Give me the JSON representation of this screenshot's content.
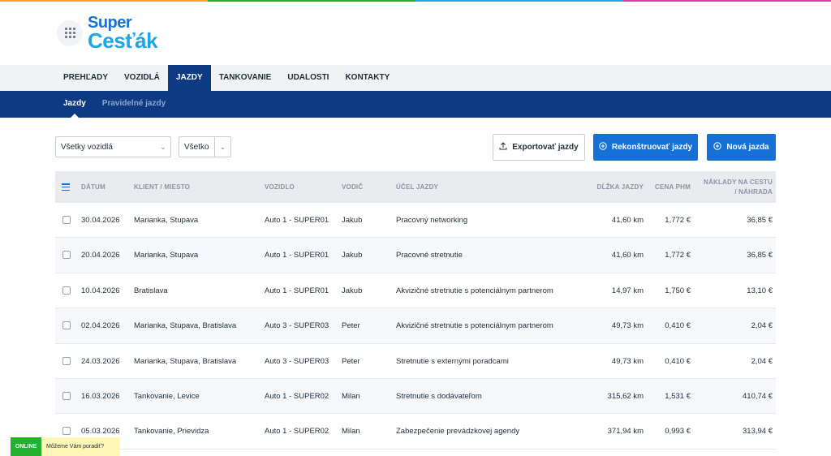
{
  "brand": {
    "line1": "Super",
    "line2": "Cesťák",
    "stripe_colors": [
      "#f5a623",
      "#25b02e",
      "#1ea7e6",
      "#d63cae"
    ]
  },
  "main_nav": [
    {
      "label": "PREHĽADY",
      "active": false
    },
    {
      "label": "VOZIDLÁ",
      "active": false
    },
    {
      "label": "JAZDY",
      "active": true
    },
    {
      "label": "TANKOVANIE",
      "active": false
    },
    {
      "label": "UDALOSTI",
      "active": false
    },
    {
      "label": "KONTAKTY",
      "active": false
    }
  ],
  "sub_nav": [
    {
      "label": "Jazdy",
      "active": true
    },
    {
      "label": "Pravidelné jazdy",
      "active": false
    }
  ],
  "filters": {
    "vehicle": "Všetky vozidlá",
    "scope": "Všetko"
  },
  "actions": {
    "export": "Exportovať jazdy",
    "reconstruct": "Rekonštruovať jazdy",
    "new": "Nová jazda"
  },
  "table": {
    "headers": {
      "date": "DÁTUM",
      "client": "KLIENT / MIESTO",
      "vehicle": "VOZIDLO",
      "driver": "VODIČ",
      "purpose": "ÚČEL JAZDY",
      "distance": "DĹŽKA JAZDY",
      "fuel_price": "CENA PHM",
      "costs_line1": "NÁKLADY NA CESTU",
      "costs_line2": "/ NÁHRADA"
    },
    "rows": [
      {
        "date": "30.04.2026",
        "client": "Marianka, Stupava",
        "vehicle": "Auto 1 - SUPER01",
        "driver": "Jakub",
        "purpose": "Pracovný networking",
        "distance": "41,60 km",
        "fuel_price": "1,772 €",
        "costs": "36,85 €"
      },
      {
        "date": "20.04.2026",
        "client": "Marianka, Stupava",
        "vehicle": "Auto 1 - SUPER01",
        "driver": "Jakub",
        "purpose": "Pracovné stretnutie",
        "distance": "41,60 km",
        "fuel_price": "1,772 €",
        "costs": "36,85 €"
      },
      {
        "date": "10.04.2026",
        "client": "Bratislava",
        "vehicle": "Auto 1 - SUPER01",
        "driver": "Jakub",
        "purpose": "Akvizičné stretnutie s potenciálnym partnerom",
        "distance": "14,97 km",
        "fuel_price": "1,750 €",
        "costs": "13,10 €"
      },
      {
        "date": "02.04.2026",
        "client": "Marianka, Stupava, Bratislava",
        "vehicle": "Auto 3 - SUPER03",
        "driver": "Peter",
        "purpose": "Akvizičné stretnutie s potenciálnym partnerom",
        "distance": "49,73 km",
        "fuel_price": "0,410 €",
        "costs": "2,04 €"
      },
      {
        "date": "24.03.2026",
        "client": "Marianka, Stupava, Bratislava",
        "vehicle": "Auto 3 - SUPER03",
        "driver": "Peter",
        "purpose": "Stretnutie s externými poradcami",
        "distance": "49,73 km",
        "fuel_price": "0,410 €",
        "costs": "2,04 €"
      },
      {
        "date": "16.03.2026",
        "client": "Tankovanie, Levice",
        "vehicle": "Auto 1 - SUPER02",
        "driver": "Milan",
        "purpose": "Stretnutie s dodávateľom",
        "distance": "315,62 km",
        "fuel_price": "1,531 €",
        "costs": "410,74 €"
      },
      {
        "date": "05.03.2026",
        "client": "Tankovanie, Prievidza",
        "vehicle": "Auto 1 - SUPER02",
        "driver": "Milan",
        "purpose": "Zabezpečenie prevádzkovej agendy",
        "distance": "371,94 km",
        "fuel_price": "0,993 €",
        "costs": "313,94 €"
      }
    ]
  },
  "chat": {
    "status": "ONLINE",
    "message": "Môžeme Vám poradiť?"
  }
}
